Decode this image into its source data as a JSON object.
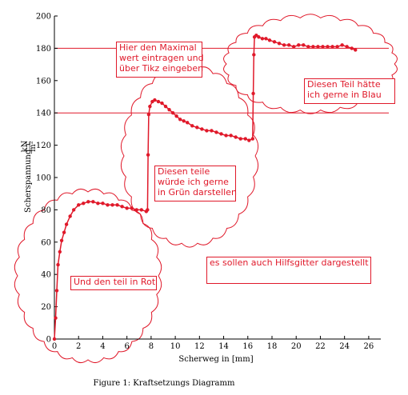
{
  "chart_data": {
    "type": "line",
    "xlabel": "Scherweg in [mm]",
    "ylabel": "Scherspannung τ",
    "ylabel_unit_numerator": "kN",
    "ylabel_unit_denominator": "m²",
    "xlim": [
      0,
      27
    ],
    "ylim": [
      0,
      200
    ],
    "x_ticks": [
      0,
      2,
      4,
      6,
      8,
      10,
      12,
      14,
      16,
      18,
      20,
      22,
      24,
      26
    ],
    "y_ticks": [
      0,
      20,
      40,
      60,
      80,
      100,
      120,
      140,
      160,
      180,
      200
    ],
    "grid": false,
    "reference_lines": [
      180,
      140
    ],
    "series_color": "#e0192a",
    "series": [
      {
        "x": [
          0,
          0.1,
          0.2,
          0.3,
          0.45,
          0.6,
          0.8,
          1.0,
          1.3,
          1.6,
          2.0,
          2.4,
          2.8,
          3.2,
          3.6,
          4.0,
          4.4,
          4.8,
          5.2,
          5.6,
          6.0,
          6.4,
          6.8,
          7.2,
          7.6,
          7.7,
          7.75,
          7.8,
          7.9,
          8.1,
          8.3,
          8.6,
          8.9,
          9.2,
          9.5,
          9.8,
          10.1,
          10.4,
          10.7,
          11.0,
          11.4,
          11.8,
          12.2,
          12.6,
          13.0,
          13.4,
          13.8,
          14.2,
          14.6,
          15.0,
          15.4,
          15.8,
          16.1,
          16.4,
          16.45,
          16.5,
          16.55,
          16.7,
          16.9,
          17.2,
          17.5,
          17.8,
          18.2,
          18.6,
          19.0,
          19.4,
          19.8,
          20.2,
          20.6,
          21.0,
          21.4,
          21.8,
          22.2,
          22.6,
          23.0,
          23.4,
          23.8,
          24.2,
          24.6,
          24.9
        ],
        "y": [
          0,
          13,
          30,
          46,
          54,
          61,
          66,
          71,
          76,
          80,
          83,
          84,
          85,
          85,
          84,
          84,
          83,
          83,
          83,
          82,
          81,
          81,
          80,
          80,
          79,
          80,
          114,
          139,
          144,
          147,
          148,
          147,
          146,
          144,
          142,
          140,
          138,
          136,
          135,
          134,
          132,
          131,
          130,
          129,
          129,
          128,
          127,
          126,
          126,
          125,
          124,
          124,
          123,
          124,
          152,
          176,
          187,
          188,
          187,
          186,
          186,
          185,
          184,
          183,
          182,
          182,
          181,
          182,
          182,
          181,
          181,
          181,
          181,
          181,
          181,
          181,
          182,
          181,
          180,
          179
        ]
      }
    ]
  },
  "annotations": [
    {
      "id": "note-max",
      "text": "Hier den Maximal\nwert eintragen und\nüber Tikz eingeben"
    },
    {
      "id": "note-blue",
      "text": "Diesen Teil hätte\nich gerne in Blau"
    },
    {
      "id": "note-green",
      "text": "Diesen teile\nwürde ich gerne\nin Grün darstellen"
    },
    {
      "id": "note-helpgrid",
      "text": "es sollen auch Hilfsgitter dargestellt"
    },
    {
      "id": "note-red",
      "text": "Und den teil in Rot"
    }
  ],
  "caption": "Figure 1: Kraftsetzungs Diagramm"
}
